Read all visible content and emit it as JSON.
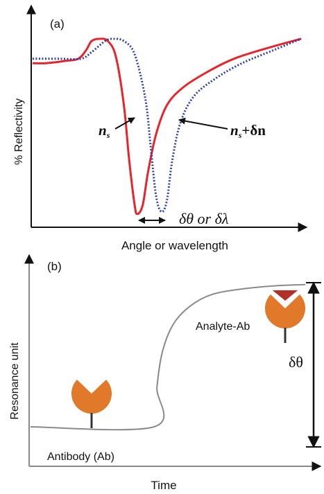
{
  "chart_data": [
    {
      "type": "line",
      "panel_label": "(a)",
      "xlabel": "Angle or wavelength",
      "ylabel": "% Reflectivity",
      "series": [
        {
          "name": "n_s",
          "color": "#e8242a",
          "style": "solid",
          "points": [
            [
              0,
              0.74
            ],
            [
              0.05,
              0.74
            ],
            [
              0.12,
              0.75
            ],
            [
              0.17,
              0.76
            ],
            [
              0.2,
              0.8
            ],
            [
              0.22,
              0.84
            ],
            [
              0.25,
              0.85
            ],
            [
              0.28,
              0.84
            ],
            [
              0.31,
              0.77
            ],
            [
              0.34,
              0.55
            ],
            [
              0.36,
              0.3
            ],
            [
              0.38,
              0.1
            ],
            [
              0.39,
              0.06
            ],
            [
              0.41,
              0.1
            ],
            [
              0.43,
              0.25
            ],
            [
              0.46,
              0.42
            ],
            [
              0.5,
              0.55
            ],
            [
              0.56,
              0.63
            ],
            [
              0.65,
              0.7
            ],
            [
              0.75,
              0.76
            ],
            [
              0.88,
              0.81
            ],
            [
              1.0,
              0.85
            ]
          ]
        },
        {
          "name": "n_s+δn",
          "color": "#2d3fa8",
          "style": "dotted",
          "points": [
            [
              0,
              0.76
            ],
            [
              0.1,
              0.76
            ],
            [
              0.18,
              0.76
            ],
            [
              0.22,
              0.79
            ],
            [
              0.27,
              0.84
            ],
            [
              0.3,
              0.85
            ],
            [
              0.34,
              0.84
            ],
            [
              0.38,
              0.78
            ],
            [
              0.42,
              0.58
            ],
            [
              0.44,
              0.36
            ],
            [
              0.46,
              0.14
            ],
            [
              0.48,
              0.07
            ],
            [
              0.5,
              0.12
            ],
            [
              0.52,
              0.3
            ],
            [
              0.55,
              0.47
            ],
            [
              0.6,
              0.59
            ],
            [
              0.68,
              0.67
            ],
            [
              0.78,
              0.74
            ],
            [
              0.9,
              0.8
            ],
            [
              1.0,
              0.85
            ]
          ]
        }
      ],
      "annotations": [
        {
          "text": "n",
          "subscript": "s"
        },
        {
          "text": "n",
          "subscript": "s",
          "suffix": "+δn"
        },
        {
          "text": "δθ or δλ"
        }
      ]
    },
    {
      "type": "line",
      "panel_label": "(b)",
      "xlabel": "Time",
      "ylabel": "Resonance unit",
      "series": [
        {
          "name": "sensorgram",
          "color": "#8a8a8a",
          "points": [
            [
              0,
              0.2
            ],
            [
              0.45,
              0.2
            ],
            [
              0.46,
              0.4
            ],
            [
              0.48,
              0.58
            ],
            [
              0.52,
              0.72
            ],
            [
              0.58,
              0.81
            ],
            [
              0.66,
              0.87
            ],
            [
              0.78,
              0.9
            ],
            [
              0.9,
              0.915
            ],
            [
              1.0,
              0.92
            ]
          ]
        }
      ],
      "annotations": [
        {
          "text": "Antibody (Ab)"
        },
        {
          "text": "Analyte-Ab"
        },
        {
          "text": "δθ"
        }
      ],
      "colors": {
        "antibody": "#e07a2a",
        "analyte": "#b0302a",
        "stem": "#333333"
      }
    }
  ]
}
